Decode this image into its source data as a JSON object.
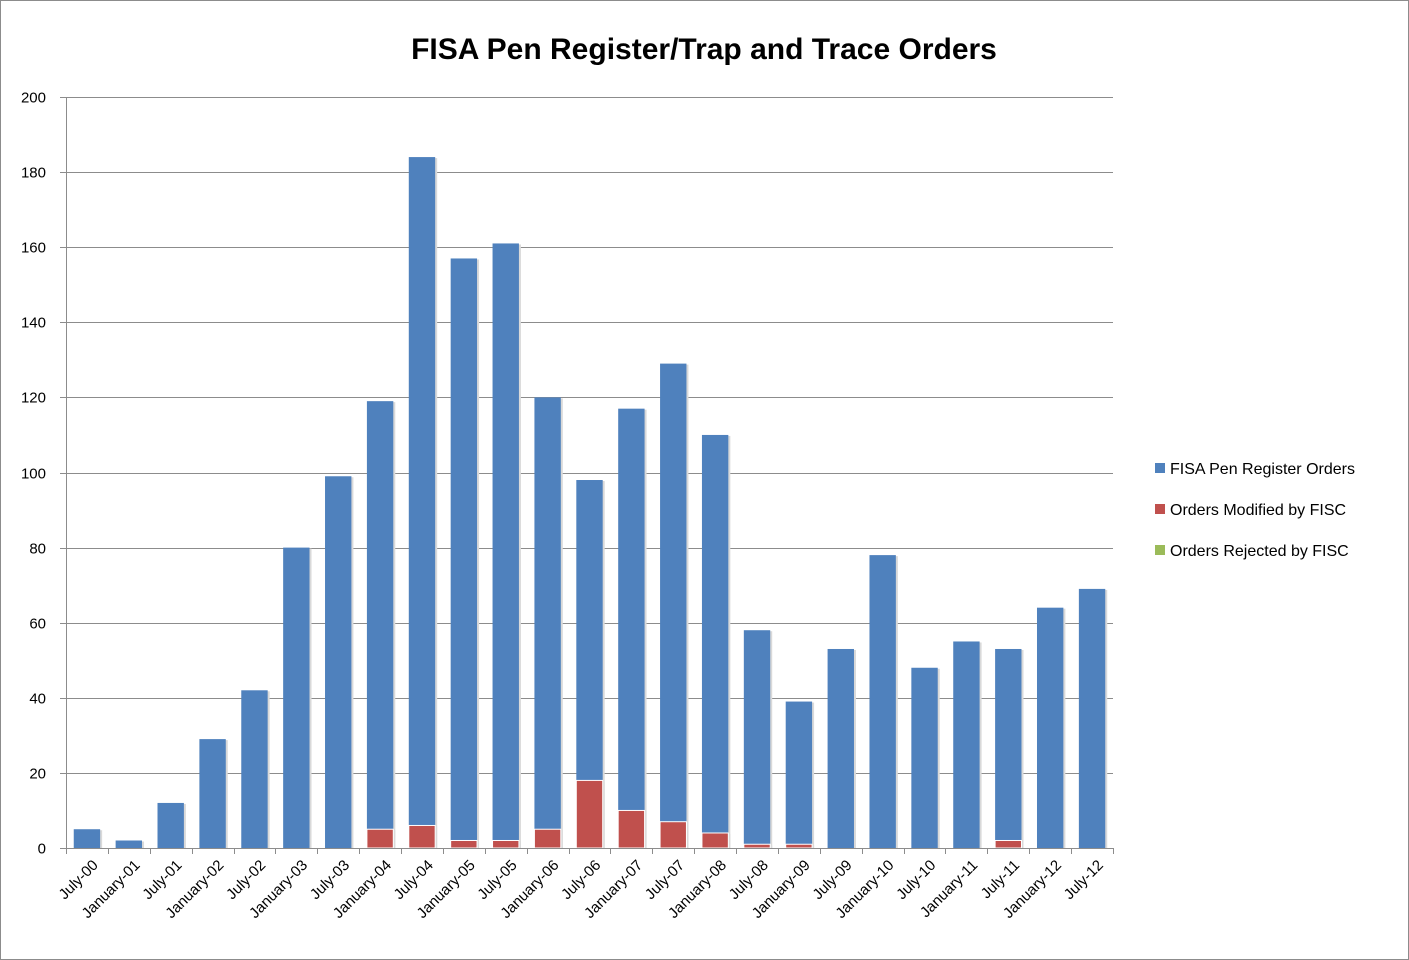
{
  "chart_data": {
    "type": "bar",
    "stacked": true,
    "title": "FISA Pen Register/Trap and Trace Orders",
    "xlabel": "",
    "ylabel": "",
    "ylim": [
      0,
      200
    ],
    "yticks": [
      0,
      20,
      40,
      60,
      80,
      100,
      120,
      140,
      160,
      180,
      200
    ],
    "grid": true,
    "legend_position": "right",
    "categories": [
      "July-00",
      "January-01",
      "July-01",
      "January-02",
      "July-02",
      "January-03",
      "July-03",
      "January-04",
      "July-04",
      "January-05",
      "July-05",
      "January-06",
      "July-06",
      "January-07",
      "July-07",
      "January-08",
      "July-08",
      "January-09",
      "July-09",
      "January-10",
      "July-10",
      "January-11",
      "July-11",
      "January-12",
      "July-12"
    ],
    "series": [
      {
        "name": "FISA Pen Register Orders",
        "color": "#4f81bd",
        "values": [
          5,
          2,
          12,
          29,
          42,
          80,
          99,
          119,
          184,
          157,
          161,
          120,
          98,
          117,
          129,
          110,
          58,
          39,
          53,
          78,
          48,
          55,
          53,
          64,
          69
        ]
      },
      {
        "name": "Orders Modified by FISC",
        "color": "#c0504d",
        "values": [
          0,
          0,
          0,
          0,
          0,
          0,
          0,
          5,
          6,
          2,
          2,
          5,
          18,
          10,
          7,
          4,
          1,
          1,
          0,
          0,
          0,
          0,
          2,
          0,
          0
        ]
      },
      {
        "name": "Orders Rejected by FISC",
        "color": "#9bbb59",
        "values": [
          0,
          0,
          0,
          0,
          0,
          0,
          0,
          0,
          0,
          0,
          0,
          0,
          0,
          0,
          0,
          0,
          0,
          0,
          0,
          0,
          0,
          0,
          0,
          0,
          0
        ]
      }
    ]
  }
}
